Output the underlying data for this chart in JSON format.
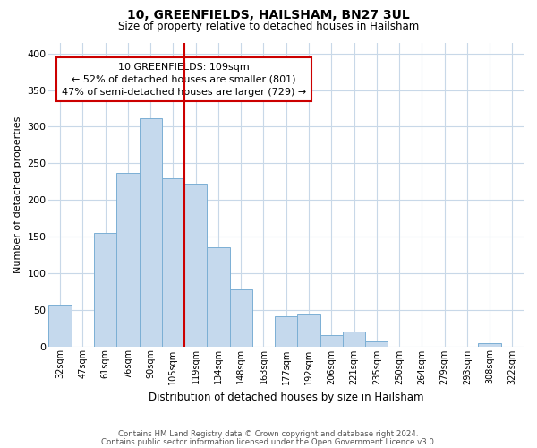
{
  "title1": "10, GREENFIELDS, HAILSHAM, BN27 3UL",
  "title2": "Size of property relative to detached houses in Hailsham",
  "xlabel": "Distribution of detached houses by size in Hailsham",
  "ylabel": "Number of detached properties",
  "categories": [
    "32sqm",
    "47sqm",
    "61sqm",
    "76sqm",
    "90sqm",
    "105sqm",
    "119sqm",
    "134sqm",
    "148sqm",
    "163sqm",
    "177sqm",
    "192sqm",
    "206sqm",
    "221sqm",
    "235sqm",
    "250sqm",
    "264sqm",
    "279sqm",
    "293sqm",
    "308sqm",
    "322sqm"
  ],
  "values": [
    57,
    0,
    155,
    237,
    311,
    230,
    222,
    135,
    78,
    0,
    41,
    43,
    15,
    20,
    7,
    0,
    0,
    0,
    0,
    4,
    0
  ],
  "bar_color": "#c5d9ed",
  "bar_edge_color": "#7bafd4",
  "vline_x": 5.5,
  "vline_color": "#cc0000",
  "annotation_title": "10 GREENFIELDS: 109sqm",
  "annotation_line1": "← 52% of detached houses are smaller (801)",
  "annotation_line2": "47% of semi-detached houses are larger (729) →",
  "annotation_box_color": "#ffffff",
  "annotation_box_edge_color": "#cc0000",
  "ylim": [
    0,
    415
  ],
  "yticks": [
    0,
    50,
    100,
    150,
    200,
    250,
    300,
    350,
    400
  ],
  "footnote1": "Contains HM Land Registry data © Crown copyright and database right 2024.",
  "footnote2": "Contains public sector information licensed under the Open Government Licence v3.0.",
  "background_color": "#ffffff",
  "grid_color": "#c8d8e8"
}
